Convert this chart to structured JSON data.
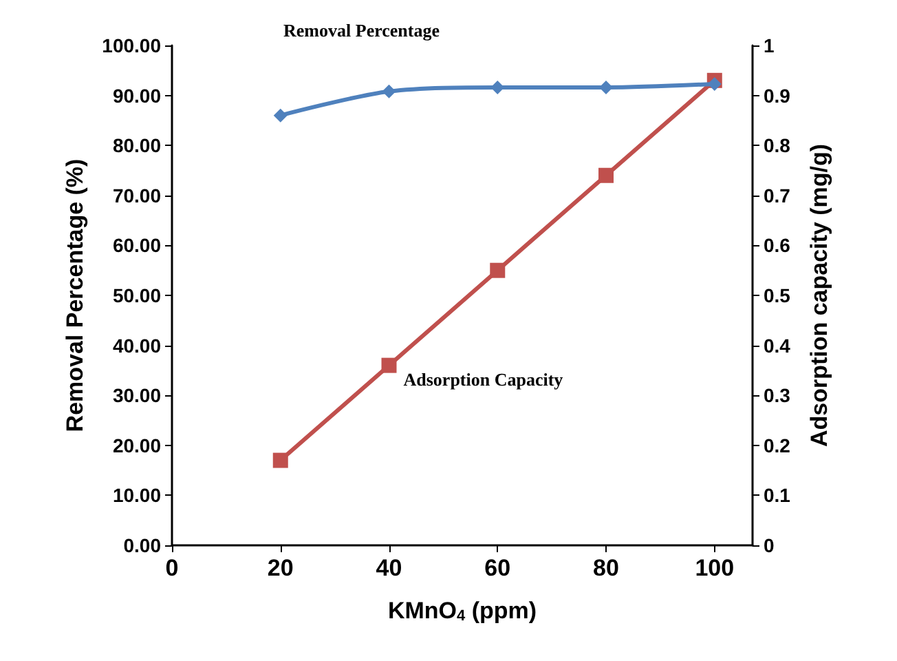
{
  "chart_data": {
    "type": "line",
    "x": [
      20,
      40,
      60,
      80,
      100
    ],
    "xlabel": "KMnO$_{4}$ (ppm)",
    "ylabel": "Removal Percentage (%)",
    "y2label": "Adsorption capacity (mg/g)",
    "series": [
      {
        "name": "Removal Percentage",
        "color": "#4f81bd",
        "marker": "diamond",
        "values": [
          86.0,
          90.8,
          91.6,
          91.6,
          92.3
        ]
      },
      {
        "name": "Adsorption Capacity",
        "color": "#c0504d",
        "marker": "square",
        "axis": "y2",
        "values": [
          0.17,
          0.36,
          0.55,
          0.74,
          0.93
        ]
      }
    ],
    "xlim": [
      0,
      107
    ],
    "xticks": [
      0,
      20,
      40,
      60,
      80,
      100
    ],
    "ylim": [
      0,
      100
    ],
    "yticks": [
      {
        "value": 0,
        "label": "0.00"
      },
      {
        "value": 10,
        "label": "10.00"
      },
      {
        "value": 20,
        "label": "20.00"
      },
      {
        "value": 30,
        "label": "30.00"
      },
      {
        "value": 40,
        "label": "40.00"
      },
      {
        "value": 50,
        "label": "50.00"
      },
      {
        "value": 60,
        "label": "60.00"
      },
      {
        "value": 70,
        "label": "70.00"
      },
      {
        "value": 80,
        "label": "80.00"
      },
      {
        "value": 90,
        "label": "90.00"
      },
      {
        "value": 100,
        "label": "100.00"
      }
    ],
    "y2lim": [
      0,
      1
    ],
    "y2ticks": [
      0,
      0.1,
      0.2,
      0.3,
      0.4,
      0.5,
      0.6,
      0.7,
      0.8,
      0.9,
      1
    ],
    "grid": false,
    "legend": false,
    "line_style": "solid"
  }
}
